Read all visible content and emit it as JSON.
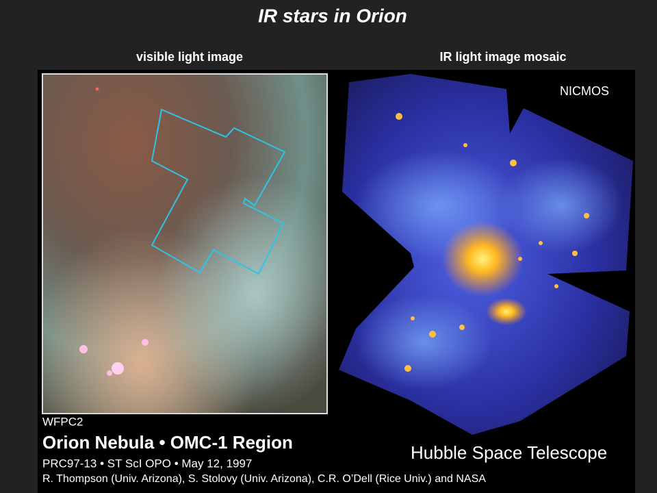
{
  "title": "IR stars in Orion",
  "left_panel": {
    "caption": "visible light image",
    "instrument": "WFPC2"
  },
  "right_panel": {
    "caption": "IR light image mosaic",
    "instrument": "NICMOS"
  },
  "credits": {
    "headline": "Orion Nebula • OMC-1 Region",
    "release": "PRC97-13 • ST ScI OPO • May 12, 1997",
    "authors": "R. Thompson (Univ. Arizona), S. Stolovy (Univ. Arizona), C.R. O’Dell (Rice Univ.) and NASA",
    "telescope": "Hubble Space Telescope"
  }
}
